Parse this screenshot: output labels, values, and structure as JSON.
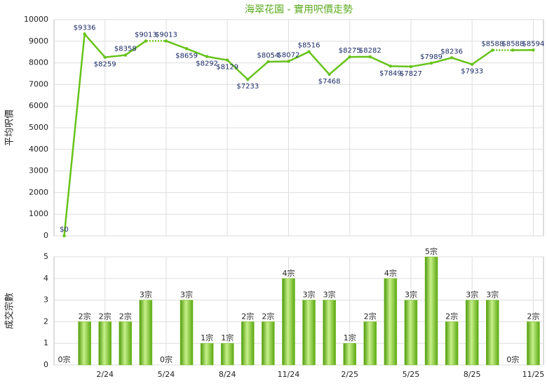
{
  "chart_data": [
    {
      "type": "line",
      "title": "海翠花園 - 實用呎價走勢",
      "y_label": "平均呎價",
      "values": [
        0,
        9336,
        8259,
        8358,
        9013,
        9013,
        8659,
        8292,
        8129,
        7233,
        8054,
        8072,
        8516,
        7468,
        8275,
        8282,
        7849,
        7827,
        7989,
        8236,
        7933,
        8588,
        8588,
        8594
      ],
      "value_labels": [
        "$0",
        "$9336",
        "$8259",
        "$8358",
        "$9013",
        "$9013",
        "$8659",
        "$8292",
        "$8129",
        "$7233",
        "$8054",
        "$8072",
        "$8516",
        "$7468",
        "$8275",
        "$8282",
        "$7849",
        "$7827",
        "$7989",
        "$8236",
        "$7933",
        "$8588",
        "$8588",
        "$8594"
      ],
      "color": "#66c319",
      "ylim": [
        0,
        10000
      ],
      "yticks": [
        0,
        1000,
        2000,
        3000,
        4000,
        5000,
        6000,
        7000,
        8000,
        9000,
        10000
      ],
      "grid": true
    },
    {
      "type": "bar",
      "y_label": "成交宗數",
      "categories": [
        null,
        null,
        "2/24",
        null,
        null,
        "5/24",
        null,
        null,
        "8/24",
        null,
        null,
        "11/24",
        null,
        null,
        "2/25",
        null,
        null,
        "5/25",
        null,
        null,
        "8/25",
        null,
        null,
        "11/25"
      ],
      "values": [
        0,
        2,
        2,
        2,
        3,
        0,
        3,
        1,
        1,
        2,
        2,
        4,
        3,
        3,
        1,
        2,
        4,
        3,
        5,
        2,
        3,
        3,
        0,
        2
      ],
      "value_labels": [
        "0宗",
        "2宗",
        "2宗",
        "2宗",
        "3宗",
        "0宗",
        "3宗",
        "1宗",
        "1宗",
        "2宗",
        "2宗",
        "4宗",
        "3宗",
        "3宗",
        "1宗",
        "2宗",
        "4宗",
        "3宗",
        "5宗",
        "2宗",
        "3宗",
        "3宗",
        "0宗",
        "2宗"
      ],
      "color": "#72c022",
      "ylim": [
        0,
        5
      ],
      "yticks": [
        0,
        1,
        2,
        3,
        4,
        5
      ],
      "grid": true
    }
  ]
}
